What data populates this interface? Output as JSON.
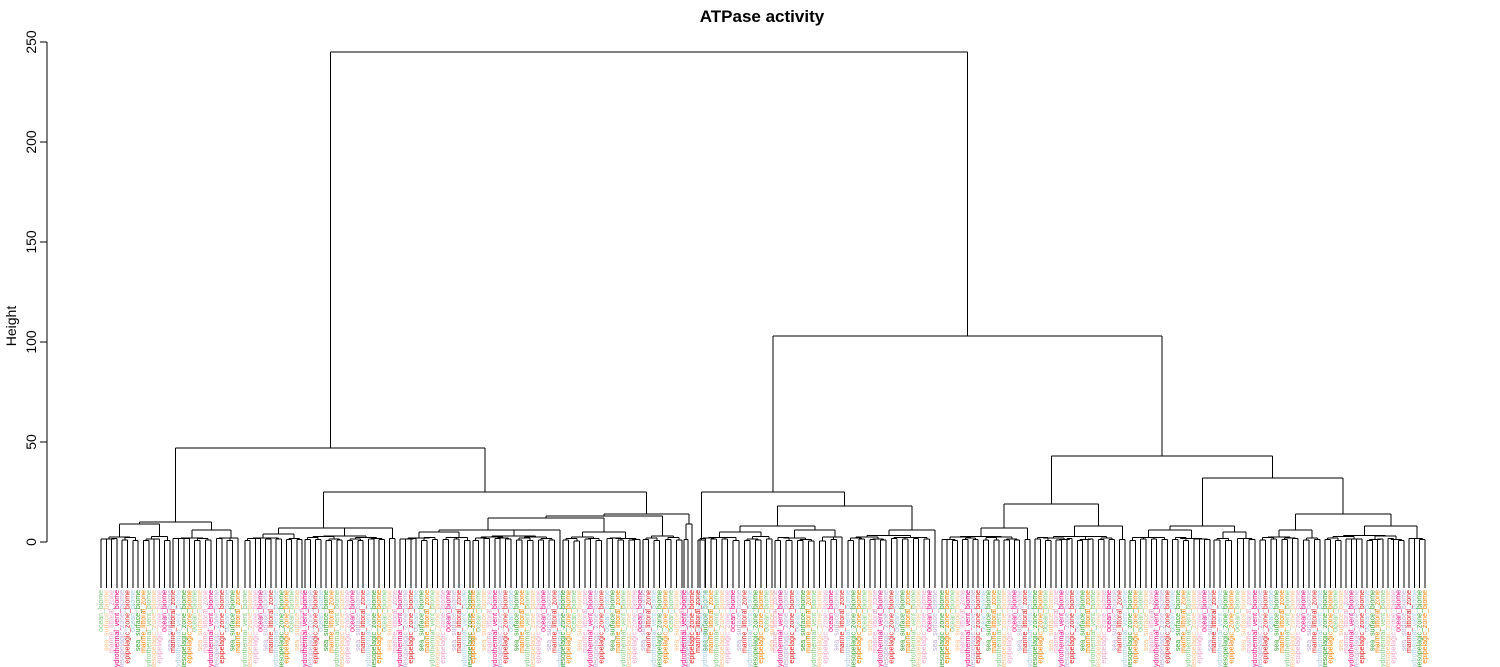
{
  "chart_data": {
    "type": "dendrogram",
    "title": "ATPase activity",
    "ylabel": "Height",
    "ylim": [
      0,
      250
    ],
    "yticks": [
      0,
      50,
      100,
      150,
      200,
      250
    ],
    "merges": [
      {
        "height": 245,
        "note": "root: left cluster vs right cluster"
      },
      {
        "height": 103,
        "note": "right cluster"
      },
      {
        "height": 47,
        "note": "left cluster"
      },
      {
        "height": 43,
        "note": "far-right cluster"
      },
      {
        "height": 32
      },
      {
        "height": 25
      },
      {
        "height": 25
      },
      {
        "height": 19
      },
      {
        "height": 18
      },
      {
        "height": 14
      },
      {
        "height": 13
      },
      {
        "height": 10
      }
    ],
    "leaf_label_terms": [
      "ocean_biome",
      "sea_surface_biome",
      "marine_littoral_zone",
      "hydrothermal_vent_biome",
      "mesopelagic_zone_biome",
      "epipelagic_zone_biome"
    ],
    "leaf_label_colors": [
      "#7fc97f",
      "#fdc086",
      "#f0a3c7",
      "#386cb0",
      "#f0027f",
      "#beaed4",
      "#e31a1c",
      "#6a3d9a",
      "#a6cee3",
      "#33a02c",
      "#ff7f00",
      "#b2df8a"
    ]
  }
}
